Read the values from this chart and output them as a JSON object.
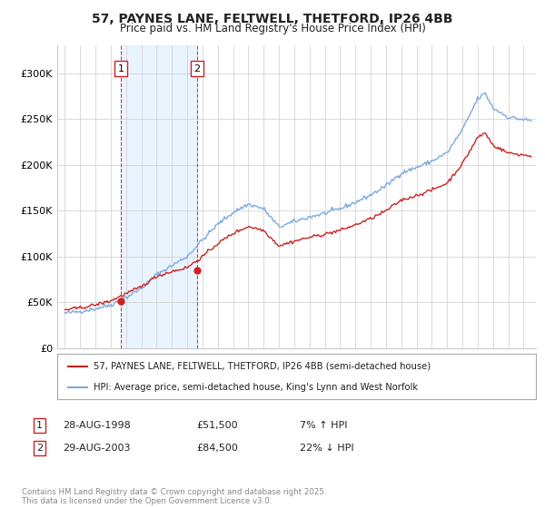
{
  "title_line1": "57, PAYNES LANE, FELTWELL, THETFORD, IP26 4BB",
  "title_line2": "Price paid vs. HM Land Registry's House Price Index (HPI)",
  "background_color": "#ffffff",
  "grid_color": "#cccccc",
  "hpi_color": "#7aaadd",
  "price_color": "#cc2222",
  "annotation_box_color": "#cc2222",
  "shade_color": "#ddeeff",
  "purchase1_year": 1998.65,
  "purchase2_year": 2003.66,
  "purchase1_price": 51500,
  "purchase2_price": 84500,
  "legend_label_price": "57, PAYNES LANE, FELTWELL, THETFORD, IP26 4BB (semi-detached house)",
  "legend_label_hpi": "HPI: Average price, semi-detached house, King's Lynn and West Norfolk",
  "table_row1": [
    "1",
    "28-AUG-1998",
    "£51,500",
    "7% ↑ HPI"
  ],
  "table_row2": [
    "2",
    "29-AUG-2003",
    "£84,500",
    "22% ↓ HPI"
  ],
  "footer": "Contains HM Land Registry data © Crown copyright and database right 2025.\nThis data is licensed under the Open Government Licence v3.0.",
  "ylim_max": 330000,
  "xmin": 1994.5,
  "xmax": 2025.8,
  "yticks": [
    0,
    50000,
    100000,
    150000,
    200000,
    250000,
    300000
  ],
  "ytick_labels": [
    "£0",
    "£50K",
    "£100K",
    "£150K",
    "£200K",
    "£250K",
    "£300K"
  ]
}
